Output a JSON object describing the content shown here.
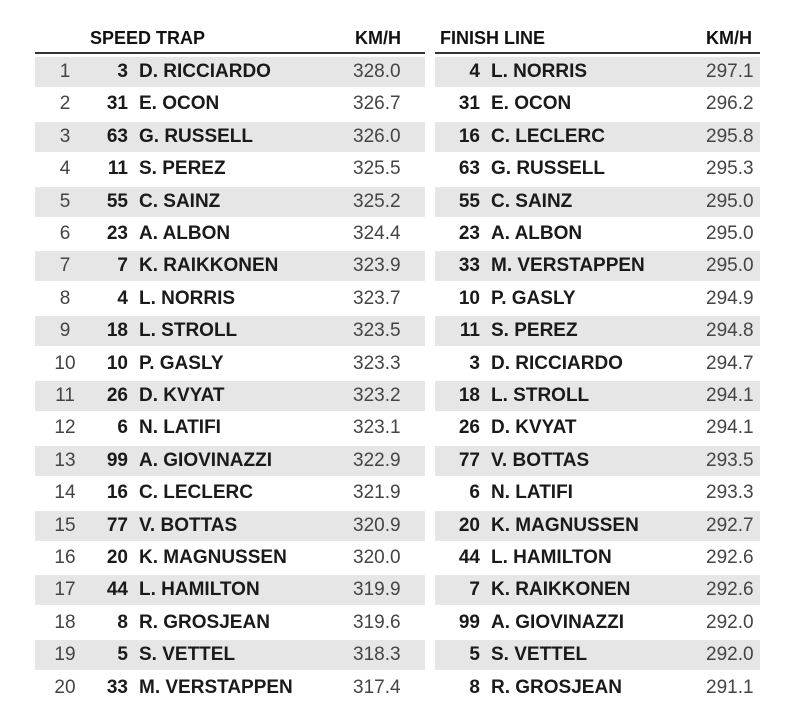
{
  "speed_trap": {
    "title": "SPEED TRAP",
    "unit": "KM/H",
    "rows": [
      [
        "1",
        "3",
        "D. RICCIARDO",
        "328.0"
      ],
      [
        "2",
        "31",
        "E. OCON",
        "326.7"
      ],
      [
        "3",
        "63",
        "G. RUSSELL",
        "326.0"
      ],
      [
        "4",
        "11",
        "S. PEREZ",
        "325.5"
      ],
      [
        "5",
        "55",
        "C. SAINZ",
        "325.2"
      ],
      [
        "6",
        "23",
        "A. ALBON",
        "324.4"
      ],
      [
        "7",
        "7",
        "K. RAIKKONEN",
        "323.9"
      ],
      [
        "8",
        "4",
        "L. NORRIS",
        "323.7"
      ],
      [
        "9",
        "18",
        "L. STROLL",
        "323.5"
      ],
      [
        "10",
        "10",
        "P. GASLY",
        "323.3"
      ],
      [
        "11",
        "26",
        "D. KVYAT",
        "323.2"
      ],
      [
        "12",
        "6",
        "N. LATIFI",
        "323.1"
      ],
      [
        "13",
        "99",
        "A. GIOVINAZZI",
        "322.9"
      ],
      [
        "14",
        "16",
        "C. LECLERC",
        "321.9"
      ],
      [
        "15",
        "77",
        "V. BOTTAS",
        "320.9"
      ],
      [
        "16",
        "20",
        "K. MAGNUSSEN",
        "320.0"
      ],
      [
        "17",
        "44",
        "L. HAMILTON",
        "319.9"
      ],
      [
        "18",
        "8",
        "R. GROSJEAN",
        "319.6"
      ],
      [
        "19",
        "5",
        "S. VETTEL",
        "318.3"
      ],
      [
        "20",
        "33",
        "M. VERSTAPPEN",
        "317.4"
      ]
    ]
  },
  "finish_line": {
    "title": "FINISH LINE",
    "unit": "KM/H",
    "rows": [
      [
        "4",
        "L. NORRIS",
        "297.1"
      ],
      [
        "31",
        "E. OCON",
        "296.2"
      ],
      [
        "16",
        "C. LECLERC",
        "295.8"
      ],
      [
        "63",
        "G. RUSSELL",
        "295.3"
      ],
      [
        "55",
        "C. SAINZ",
        "295.0"
      ],
      [
        "23",
        "A. ALBON",
        "295.0"
      ],
      [
        "33",
        "M. VERSTAPPEN",
        "295.0"
      ],
      [
        "10",
        "P. GASLY",
        "294.9"
      ],
      [
        "11",
        "S. PEREZ",
        "294.8"
      ],
      [
        "3",
        "D. RICCIARDO",
        "294.7"
      ],
      [
        "18",
        "L. STROLL",
        "294.1"
      ],
      [
        "26",
        "D. KVYAT",
        "294.1"
      ],
      [
        "77",
        "V. BOTTAS",
        "293.5"
      ],
      [
        "6",
        "N. LATIFI",
        "293.3"
      ],
      [
        "20",
        "K. MAGNUSSEN",
        "292.7"
      ],
      [
        "44",
        "L. HAMILTON",
        "292.6"
      ],
      [
        "7",
        "K. RAIKKONEN",
        "292.6"
      ],
      [
        "99",
        "A. GIOVINAZZI",
        "292.0"
      ],
      [
        "5",
        "S. VETTEL",
        "292.0"
      ],
      [
        "8",
        "R. GROSJEAN",
        "291.1"
      ]
    ]
  }
}
